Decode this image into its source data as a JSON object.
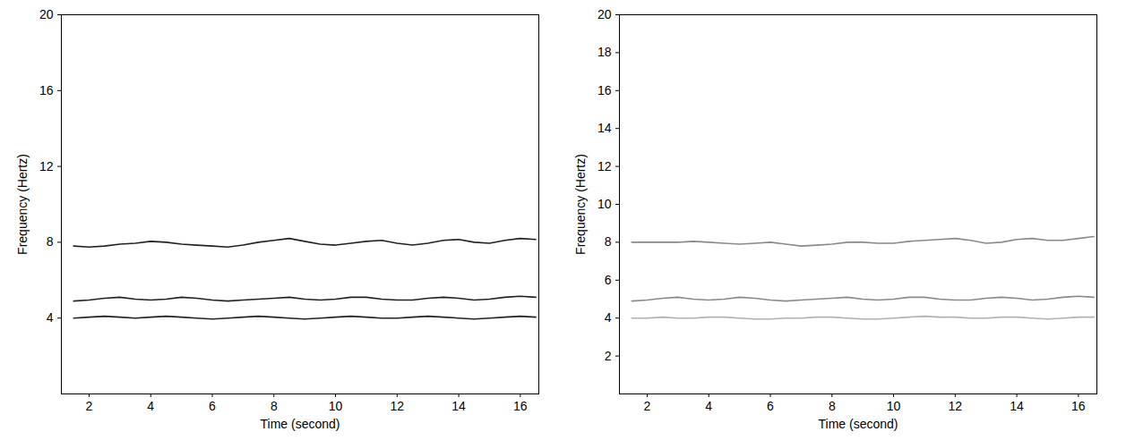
{
  "chart_data": [
    {
      "type": "line",
      "x_label": "Time (second)",
      "y_label": "Frequency (Hertz)",
      "xlim": [
        1.1,
        16.6
      ],
      "xticks": [
        2,
        4,
        6,
        8,
        10,
        12,
        14,
        16
      ],
      "ylim": [
        0,
        20
      ],
      "yticks": [
        4,
        8,
        12,
        16,
        20
      ],
      "grid": false,
      "x": [
        1.5,
        2,
        2.5,
        3,
        3.5,
        4,
        4.5,
        5,
        5.5,
        6,
        6.5,
        7,
        7.5,
        8,
        8.5,
        9,
        9.5,
        10,
        10.5,
        11,
        11.5,
        12,
        12.5,
        13,
        13.5,
        14,
        14.5,
        15,
        15.5,
        16,
        16.5
      ],
      "series": [
        {
          "color": "#222222",
          "values": [
            7.8,
            7.75,
            7.8,
            7.9,
            7.95,
            8.05,
            8.0,
            7.9,
            7.85,
            7.8,
            7.75,
            7.85,
            8.0,
            8.1,
            8.2,
            8.05,
            7.9,
            7.85,
            7.95,
            8.05,
            8.1,
            7.95,
            7.85,
            7.95,
            8.1,
            8.15,
            8.0,
            7.95,
            8.1,
            8.2,
            8.15
          ]
        },
        {
          "color": "#222222",
          "values": [
            4.9,
            4.95,
            5.05,
            5.1,
            5.0,
            4.95,
            5.0,
            5.1,
            5.05,
            4.95,
            4.9,
            4.95,
            5.0,
            5.05,
            5.1,
            5.0,
            4.95,
            5.0,
            5.1,
            5.1,
            5.0,
            4.95,
            4.95,
            5.05,
            5.1,
            5.05,
            4.95,
            5.0,
            5.1,
            5.15,
            5.1
          ]
        },
        {
          "color": "#222222",
          "values": [
            4.0,
            4.05,
            4.1,
            4.05,
            4.0,
            4.05,
            4.1,
            4.05,
            4.0,
            3.95,
            4.0,
            4.05,
            4.1,
            4.05,
            4.0,
            3.95,
            4.0,
            4.05,
            4.1,
            4.05,
            4.0,
            4.0,
            4.05,
            4.1,
            4.05,
            4.0,
            3.95,
            4.0,
            4.05,
            4.1,
            4.05
          ]
        }
      ]
    },
    {
      "type": "line",
      "x_label": "Time (second)",
      "y_label": "Frequency (Hertz)",
      "xlim": [
        1.1,
        16.6
      ],
      "xticks": [
        2,
        4,
        6,
        8,
        10,
        12,
        14,
        16
      ],
      "ylim": [
        0,
        20
      ],
      "yticks": [
        2,
        4,
        6,
        8,
        10,
        12,
        14,
        16,
        18,
        20
      ],
      "grid": false,
      "x": [
        1.5,
        2,
        2.5,
        3,
        3.5,
        4,
        4.5,
        5,
        5.5,
        6,
        6.5,
        7,
        7.5,
        8,
        8.5,
        9,
        9.5,
        10,
        10.5,
        11,
        11.5,
        12,
        12.5,
        13,
        13.5,
        14,
        14.5,
        15,
        15.5,
        16,
        16.5
      ],
      "series": [
        {
          "color": "#8a8a8a",
          "values": [
            8.0,
            8.0,
            8.0,
            8.0,
            8.05,
            8.0,
            7.95,
            7.9,
            7.95,
            8.0,
            7.9,
            7.8,
            7.85,
            7.9,
            8.0,
            8.0,
            7.95,
            7.95,
            8.05,
            8.1,
            8.15,
            8.2,
            8.1,
            7.95,
            8.0,
            8.15,
            8.2,
            8.1,
            8.1,
            8.2,
            8.3
          ]
        },
        {
          "color": "#8a8a8a",
          "values": [
            4.9,
            4.95,
            5.05,
            5.1,
            5.0,
            4.95,
            5.0,
            5.1,
            5.05,
            4.95,
            4.9,
            4.95,
            5.0,
            5.05,
            5.1,
            5.0,
            4.95,
            5.0,
            5.1,
            5.1,
            5.0,
            4.95,
            4.95,
            5.05,
            5.1,
            5.05,
            4.95,
            5.0,
            5.1,
            5.15,
            5.1
          ]
        },
        {
          "color": "#b0b0b0",
          "values": [
            4.0,
            4.0,
            4.05,
            4.0,
            4.0,
            4.05,
            4.05,
            4.0,
            3.95,
            3.95,
            4.0,
            4.0,
            4.05,
            4.05,
            4.0,
            3.95,
            3.95,
            4.0,
            4.05,
            4.1,
            4.05,
            4.05,
            4.0,
            4.0,
            4.05,
            4.05,
            4.0,
            3.95,
            4.0,
            4.05,
            4.05
          ]
        }
      ]
    }
  ]
}
